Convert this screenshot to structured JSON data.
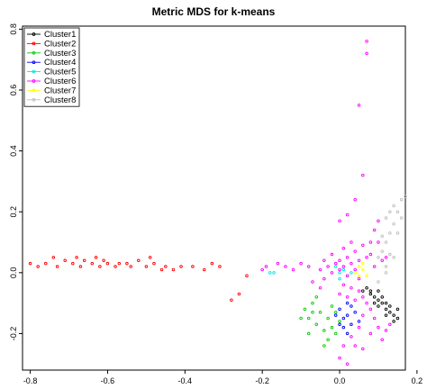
{
  "chart_data": {
    "type": "scatter",
    "title": "Metric MDS for k-means",
    "xlabel": "",
    "ylabel": "",
    "xlim": [
      -0.82,
      0.17
    ],
    "ylim": [
      -0.32,
      0.81
    ],
    "x_ticks": [
      "-0.8",
      "-0.6",
      "-0.4",
      "-0.2",
      "0.0",
      "0.2"
    ],
    "x_tick_values": [
      -0.8,
      -0.6,
      -0.4,
      -0.2,
      0.0,
      0.2
    ],
    "y_ticks": [
      "-0.2",
      "0.0",
      "0.2",
      "0.4",
      "0.6",
      "0.8"
    ],
    "y_tick_values": [
      -0.2,
      0.0,
      0.2,
      0.4,
      0.6,
      0.8
    ],
    "grid": false,
    "legend_position": "top-left",
    "series": [
      {
        "name": "Cluster1",
        "color": "#000000",
        "points": [
          [
            0.07,
            -0.05
          ],
          [
            0.08,
            -0.07
          ],
          [
            0.09,
            -0.08
          ],
          [
            0.1,
            -0.09
          ],
          [
            0.11,
            -0.1
          ],
          [
            0.12,
            -0.12
          ],
          [
            0.13,
            -0.13
          ],
          [
            0.14,
            -0.14
          ],
          [
            0.15,
            -0.15
          ],
          [
            0.08,
            -0.06
          ],
          [
            0.1,
            -0.11
          ],
          [
            0.12,
            -0.1
          ],
          [
            0.14,
            -0.16
          ],
          [
            0.09,
            -0.1
          ],
          [
            0.11,
            -0.08
          ],
          [
            0.13,
            -0.11
          ],
          [
            0.06,
            -0.06
          ],
          [
            0.15,
            -0.12
          ],
          [
            0.1,
            -0.06
          ],
          [
            0.12,
            -0.14
          ]
        ]
      },
      {
        "name": "Cluster2",
        "color": "#ff0000",
        "points": [
          [
            -0.8,
            0.03
          ],
          [
            -0.78,
            0.02
          ],
          [
            -0.76,
            0.03
          ],
          [
            -0.74,
            0.05
          ],
          [
            -0.73,
            0.02
          ],
          [
            -0.71,
            0.04
          ],
          [
            -0.69,
            0.03
          ],
          [
            -0.68,
            0.05
          ],
          [
            -0.67,
            0.02
          ],
          [
            -0.66,
            0.04
          ],
          [
            -0.64,
            0.03
          ],
          [
            -0.63,
            0.05
          ],
          [
            -0.62,
            0.02
          ],
          [
            -0.61,
            0.04
          ],
          [
            -0.6,
            0.03
          ],
          [
            -0.58,
            0.02
          ],
          [
            -0.57,
            0.03
          ],
          [
            -0.55,
            0.03
          ],
          [
            -0.54,
            0.02
          ],
          [
            -0.52,
            0.04
          ],
          [
            -0.5,
            0.02
          ],
          [
            -0.49,
            0.05
          ],
          [
            -0.48,
            0.03
          ],
          [
            -0.46,
            0.01
          ],
          [
            -0.45,
            0.02
          ],
          [
            -0.43,
            0.01
          ],
          [
            -0.41,
            0.02
          ],
          [
            -0.38,
            0.02
          ],
          [
            -0.35,
            0.01
          ],
          [
            -0.33,
            0.03
          ],
          [
            -0.31,
            0.02
          ],
          [
            -0.28,
            -0.09
          ],
          [
            -0.26,
            -0.07
          ],
          [
            -0.24,
            -0.01
          ]
        ]
      },
      {
        "name": "Cluster3",
        "color": "#00cc00",
        "points": [
          [
            -0.09,
            -0.12
          ],
          [
            -0.08,
            -0.15
          ],
          [
            -0.07,
            -0.1
          ],
          [
            -0.06,
            -0.17
          ],
          [
            -0.05,
            -0.13
          ],
          [
            -0.04,
            -0.19
          ],
          [
            -0.03,
            -0.15
          ],
          [
            -0.02,
            -0.11
          ],
          [
            -0.01,
            -0.2
          ],
          [
            0.0,
            -0.16
          ],
          [
            -0.06,
            -0.08
          ],
          [
            -0.03,
            -0.22
          ],
          [
            -0.01,
            -0.13
          ],
          [
            -0.08,
            -0.2
          ],
          [
            -0.04,
            -0.24
          ],
          [
            -0.02,
            -0.18
          ],
          [
            -0.1,
            -0.15
          ],
          [
            -0.07,
            -0.13
          ]
        ]
      },
      {
        "name": "Cluster4",
        "color": "#0000ff",
        "points": [
          [
            0.0,
            -0.12
          ],
          [
            0.01,
            -0.15
          ],
          [
            0.02,
            -0.1
          ],
          [
            0.03,
            -0.17
          ],
          [
            0.0,
            -0.17
          ],
          [
            0.02,
            -0.14
          ],
          [
            0.04,
            -0.13
          ],
          [
            -0.01,
            -0.14
          ],
          [
            0.03,
            -0.11
          ],
          [
            0.01,
            -0.18
          ],
          [
            0.05,
            -0.16
          ],
          [
            0.02,
            -0.2
          ]
        ]
      },
      {
        "name": "Cluster5",
        "color": "#00e5e5",
        "points": [
          [
            -0.17,
            0.0
          ],
          [
            -0.18,
            0.0
          ],
          [
            0.0,
            0.0
          ],
          [
            0.01,
            0.01
          ],
          [
            0.02,
            -0.01
          ],
          [
            -0.01,
            0.02
          ],
          [
            0.03,
            0.0
          ],
          [
            0.0,
            -0.02
          ]
        ]
      },
      {
        "name": "Cluster6",
        "color": "#ff00ff",
        "points": [
          [
            0.07,
            0.76
          ],
          [
            0.07,
            0.72
          ],
          [
            0.05,
            0.55
          ],
          [
            0.06,
            0.32
          ],
          [
            0.04,
            0.24
          ],
          [
            0.02,
            0.19
          ],
          [
            0.0,
            0.17
          ],
          [
            0.03,
            0.1
          ],
          [
            0.01,
            0.08
          ],
          [
            0.04,
            0.07
          ],
          [
            0.06,
            0.09
          ],
          [
            0.02,
            0.05
          ],
          [
            0.0,
            0.04
          ],
          [
            0.03,
            0.03
          ],
          [
            0.05,
            0.04
          ],
          [
            0.01,
            0.02
          ],
          [
            0.04,
            0.01
          ],
          [
            0.0,
            0.01
          ],
          [
            0.02,
            -0.01
          ],
          [
            0.05,
            -0.02
          ],
          [
            0.07,
            0.05
          ],
          [
            0.08,
            0.1
          ],
          [
            0.09,
            0.14
          ],
          [
            0.1,
            0.17
          ],
          [
            0.1,
            0.1
          ],
          [
            0.08,
            0.06
          ],
          [
            -0.01,
            0.03
          ],
          [
            -0.03,
            0.02
          ],
          [
            -0.05,
            0.01
          ],
          [
            -0.08,
            0.02
          ],
          [
            -0.1,
            0.03
          ],
          [
            -0.12,
            0.01
          ],
          [
            -0.14,
            0.02
          ],
          [
            -0.16,
            0.03
          ],
          [
            -0.19,
            0.02
          ],
          [
            -0.2,
            0.01
          ],
          [
            -0.05,
            -0.05
          ],
          [
            -0.04,
            -0.02
          ],
          [
            -0.02,
            0.0
          ],
          [
            0.01,
            -0.04
          ],
          [
            0.03,
            -0.05
          ],
          [
            0.05,
            -0.06
          ],
          [
            0.06,
            -0.08
          ],
          [
            0.04,
            -0.09
          ],
          [
            0.02,
            -0.08
          ],
          [
            0.0,
            -0.07
          ],
          [
            0.07,
            -0.1
          ],
          [
            0.08,
            -0.12
          ],
          [
            0.06,
            -0.14
          ],
          [
            0.05,
            -0.18
          ],
          [
            0.03,
            -0.21
          ],
          [
            0.01,
            -0.24
          ],
          [
            0.0,
            -0.28
          ],
          [
            0.02,
            -0.3
          ],
          [
            0.09,
            -0.15
          ],
          [
            0.1,
            -0.18
          ],
          [
            0.12,
            -0.19
          ],
          [
            0.08,
            -0.2
          ],
          [
            0.11,
            -0.22
          ],
          [
            0.13,
            -0.17
          ],
          [
            0.04,
            -0.24
          ],
          [
            0.06,
            -0.25
          ],
          [
            0.11,
            0.04
          ],
          [
            0.12,
            0.05
          ],
          [
            0.09,
            0.02
          ],
          [
            -0.02,
            0.06
          ],
          [
            -0.04,
            0.04
          ],
          [
            -0.07,
            -0.03
          ]
        ]
      },
      {
        "name": "Cluster7",
        "color": "#ffff00",
        "points": [
          [
            0.04,
            0.0
          ],
          [
            0.05,
            0.02
          ],
          [
            0.06,
            0.01
          ],
          [
            0.07,
            -0.01
          ],
          [
            0.05,
            -0.01
          ],
          [
            0.06,
            0.03
          ]
        ]
      },
      {
        "name": "Cluster8",
        "color": "#bebebe",
        "points": [
          [
            0.1,
            0.05
          ],
          [
            0.11,
            0.07
          ],
          [
            0.12,
            0.1
          ],
          [
            0.13,
            0.13
          ],
          [
            0.14,
            0.16
          ],
          [
            0.15,
            0.2
          ],
          [
            0.16,
            0.24
          ],
          [
            0.17,
            0.25
          ],
          [
            0.14,
            0.22
          ],
          [
            0.13,
            0.2
          ],
          [
            0.12,
            0.18
          ],
          [
            0.15,
            0.13
          ],
          [
            0.16,
            0.18
          ],
          [
            0.11,
            0.12
          ],
          [
            0.13,
            0.06
          ],
          [
            0.12,
            0.02
          ],
          [
            0.14,
            0.05
          ],
          [
            0.1,
            -0.03
          ],
          [
            0.12,
            0.0
          ]
        ]
      }
    ]
  }
}
